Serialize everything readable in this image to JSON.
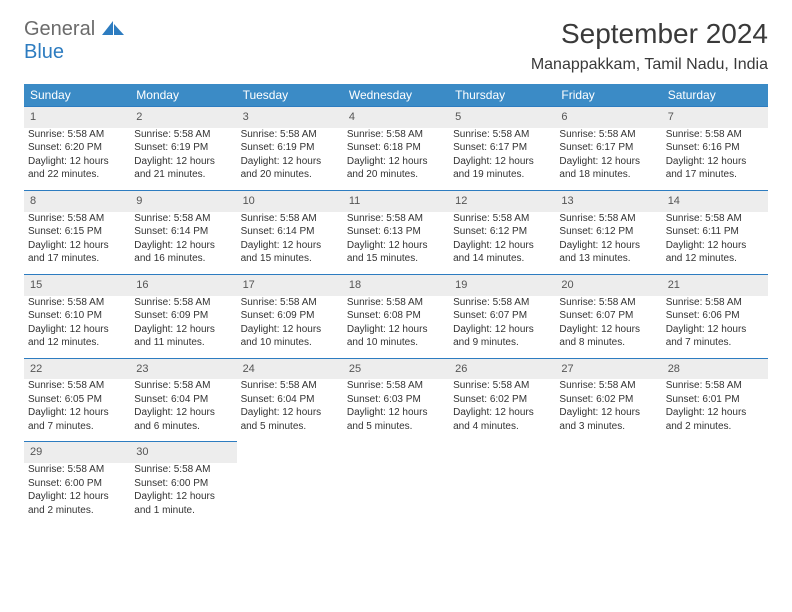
{
  "logo": {
    "word1": "General",
    "word2": "Blue",
    "icon_color": "#2d7cc0"
  },
  "header": {
    "month_title": "September 2024",
    "location": "Manappakkam, Tamil Nadu, India"
  },
  "colors": {
    "header_bg": "#3b8bc6",
    "header_fg": "#ffffff",
    "daynum_bg": "#ededed",
    "daynum_border": "#2d7cc0"
  },
  "weekdays": [
    "Sunday",
    "Monday",
    "Tuesday",
    "Wednesday",
    "Thursday",
    "Friday",
    "Saturday"
  ],
  "weeks": [
    [
      {
        "n": "1",
        "sr": "Sunrise: 5:58 AM",
        "ss": "Sunset: 6:20 PM",
        "d1": "Daylight: 12 hours",
        "d2": "and 22 minutes."
      },
      {
        "n": "2",
        "sr": "Sunrise: 5:58 AM",
        "ss": "Sunset: 6:19 PM",
        "d1": "Daylight: 12 hours",
        "d2": "and 21 minutes."
      },
      {
        "n": "3",
        "sr": "Sunrise: 5:58 AM",
        "ss": "Sunset: 6:19 PM",
        "d1": "Daylight: 12 hours",
        "d2": "and 20 minutes."
      },
      {
        "n": "4",
        "sr": "Sunrise: 5:58 AM",
        "ss": "Sunset: 6:18 PM",
        "d1": "Daylight: 12 hours",
        "d2": "and 20 minutes."
      },
      {
        "n": "5",
        "sr": "Sunrise: 5:58 AM",
        "ss": "Sunset: 6:17 PM",
        "d1": "Daylight: 12 hours",
        "d2": "and 19 minutes."
      },
      {
        "n": "6",
        "sr": "Sunrise: 5:58 AM",
        "ss": "Sunset: 6:17 PM",
        "d1": "Daylight: 12 hours",
        "d2": "and 18 minutes."
      },
      {
        "n": "7",
        "sr": "Sunrise: 5:58 AM",
        "ss": "Sunset: 6:16 PM",
        "d1": "Daylight: 12 hours",
        "d2": "and 17 minutes."
      }
    ],
    [
      {
        "n": "8",
        "sr": "Sunrise: 5:58 AM",
        "ss": "Sunset: 6:15 PM",
        "d1": "Daylight: 12 hours",
        "d2": "and 17 minutes."
      },
      {
        "n": "9",
        "sr": "Sunrise: 5:58 AM",
        "ss": "Sunset: 6:14 PM",
        "d1": "Daylight: 12 hours",
        "d2": "and 16 minutes."
      },
      {
        "n": "10",
        "sr": "Sunrise: 5:58 AM",
        "ss": "Sunset: 6:14 PM",
        "d1": "Daylight: 12 hours",
        "d2": "and 15 minutes."
      },
      {
        "n": "11",
        "sr": "Sunrise: 5:58 AM",
        "ss": "Sunset: 6:13 PM",
        "d1": "Daylight: 12 hours",
        "d2": "and 15 minutes."
      },
      {
        "n": "12",
        "sr": "Sunrise: 5:58 AM",
        "ss": "Sunset: 6:12 PM",
        "d1": "Daylight: 12 hours",
        "d2": "and 14 minutes."
      },
      {
        "n": "13",
        "sr": "Sunrise: 5:58 AM",
        "ss": "Sunset: 6:12 PM",
        "d1": "Daylight: 12 hours",
        "d2": "and 13 minutes."
      },
      {
        "n": "14",
        "sr": "Sunrise: 5:58 AM",
        "ss": "Sunset: 6:11 PM",
        "d1": "Daylight: 12 hours",
        "d2": "and 12 minutes."
      }
    ],
    [
      {
        "n": "15",
        "sr": "Sunrise: 5:58 AM",
        "ss": "Sunset: 6:10 PM",
        "d1": "Daylight: 12 hours",
        "d2": "and 12 minutes."
      },
      {
        "n": "16",
        "sr": "Sunrise: 5:58 AM",
        "ss": "Sunset: 6:09 PM",
        "d1": "Daylight: 12 hours",
        "d2": "and 11 minutes."
      },
      {
        "n": "17",
        "sr": "Sunrise: 5:58 AM",
        "ss": "Sunset: 6:09 PM",
        "d1": "Daylight: 12 hours",
        "d2": "and 10 minutes."
      },
      {
        "n": "18",
        "sr": "Sunrise: 5:58 AM",
        "ss": "Sunset: 6:08 PM",
        "d1": "Daylight: 12 hours",
        "d2": "and 10 minutes."
      },
      {
        "n": "19",
        "sr": "Sunrise: 5:58 AM",
        "ss": "Sunset: 6:07 PM",
        "d1": "Daylight: 12 hours",
        "d2": "and 9 minutes."
      },
      {
        "n": "20",
        "sr": "Sunrise: 5:58 AM",
        "ss": "Sunset: 6:07 PM",
        "d1": "Daylight: 12 hours",
        "d2": "and 8 minutes."
      },
      {
        "n": "21",
        "sr": "Sunrise: 5:58 AM",
        "ss": "Sunset: 6:06 PM",
        "d1": "Daylight: 12 hours",
        "d2": "and 7 minutes."
      }
    ],
    [
      {
        "n": "22",
        "sr": "Sunrise: 5:58 AM",
        "ss": "Sunset: 6:05 PM",
        "d1": "Daylight: 12 hours",
        "d2": "and 7 minutes."
      },
      {
        "n": "23",
        "sr": "Sunrise: 5:58 AM",
        "ss": "Sunset: 6:04 PM",
        "d1": "Daylight: 12 hours",
        "d2": "and 6 minutes."
      },
      {
        "n": "24",
        "sr": "Sunrise: 5:58 AM",
        "ss": "Sunset: 6:04 PM",
        "d1": "Daylight: 12 hours",
        "d2": "and 5 minutes."
      },
      {
        "n": "25",
        "sr": "Sunrise: 5:58 AM",
        "ss": "Sunset: 6:03 PM",
        "d1": "Daylight: 12 hours",
        "d2": "and 5 minutes."
      },
      {
        "n": "26",
        "sr": "Sunrise: 5:58 AM",
        "ss": "Sunset: 6:02 PM",
        "d1": "Daylight: 12 hours",
        "d2": "and 4 minutes."
      },
      {
        "n": "27",
        "sr": "Sunrise: 5:58 AM",
        "ss": "Sunset: 6:02 PM",
        "d1": "Daylight: 12 hours",
        "d2": "and 3 minutes."
      },
      {
        "n": "28",
        "sr": "Sunrise: 5:58 AM",
        "ss": "Sunset: 6:01 PM",
        "d1": "Daylight: 12 hours",
        "d2": "and 2 minutes."
      }
    ],
    [
      {
        "n": "29",
        "sr": "Sunrise: 5:58 AM",
        "ss": "Sunset: 6:00 PM",
        "d1": "Daylight: 12 hours",
        "d2": "and 2 minutes."
      },
      {
        "n": "30",
        "sr": "Sunrise: 5:58 AM",
        "ss": "Sunset: 6:00 PM",
        "d1": "Daylight: 12 hours",
        "d2": "and 1 minute."
      },
      null,
      null,
      null,
      null,
      null
    ]
  ]
}
